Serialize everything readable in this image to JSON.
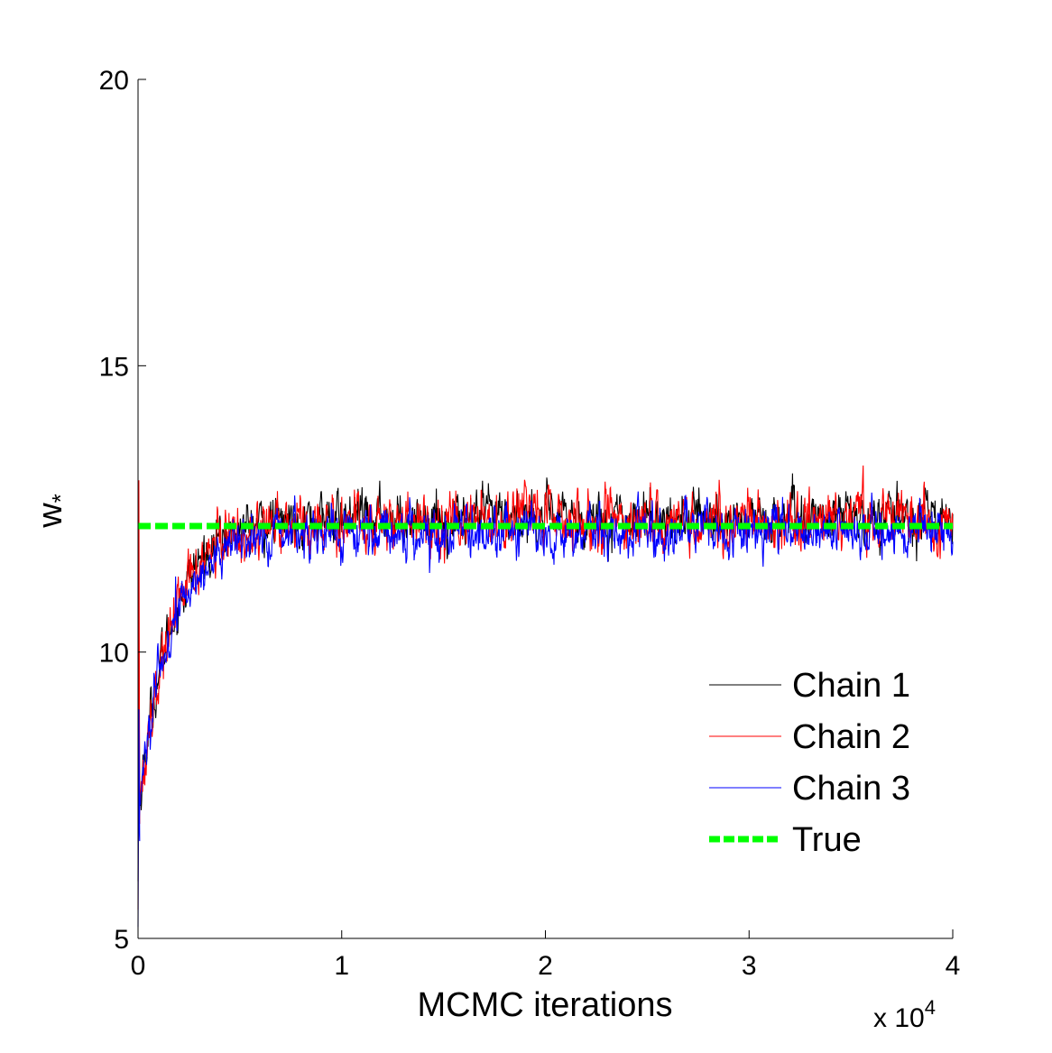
{
  "chart_data": {
    "type": "line",
    "title": "",
    "xlabel": "MCMC iterations",
    "ylabel": "w",
    "ylabel_subscript": "*",
    "x_multiplier": {
      "base": "x 10",
      "exponent": "4"
    },
    "xlim": [
      0,
      40000
    ],
    "ylim": [
      5,
      20
    ],
    "xticks": [
      0,
      10000,
      20000,
      30000,
      40000
    ],
    "xtick_labels": [
      "0",
      "1",
      "2",
      "3",
      "4"
    ],
    "yticks": [
      5,
      10,
      15,
      20
    ],
    "ytick_labels": [
      "5",
      "10",
      "15",
      "20"
    ],
    "grid": false,
    "legend_position": "lower-right",
    "series": [
      {
        "name": "Chain 1",
        "color": "#000000",
        "style": "solid",
        "start": 6.0,
        "start_spike": 10.5,
        "plateau": 12.35,
        "noise": 0.18
      },
      {
        "name": "Chain 2",
        "color": "#ff0000",
        "style": "solid",
        "start": 5.5,
        "start_spike": 13.0,
        "plateau": 12.3,
        "noise": 0.2
      },
      {
        "name": "Chain 3",
        "color": "#0000ff",
        "style": "solid",
        "start": 5.2,
        "start_spike": 9.0,
        "plateau": 12.1,
        "noise": 0.17
      },
      {
        "name": "True",
        "color": "#00ff00",
        "style": "dashed",
        "value": 12.2
      }
    ]
  }
}
